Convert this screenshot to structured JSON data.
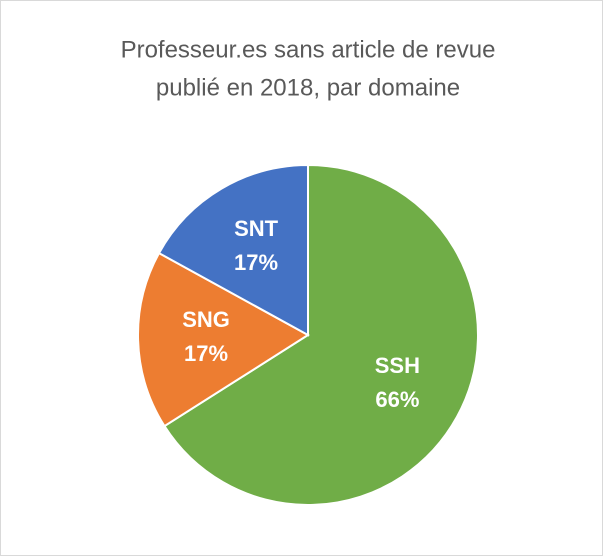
{
  "chart_data": {
    "type": "pie",
    "title": [
      "Professeur.es sans article de revue",
      "publié en 2018, par domaine"
    ],
    "categories": [
      "SSH",
      "SNG",
      "SNT"
    ],
    "values": [
      66,
      17,
      17
    ],
    "value_labels": [
      "66%",
      "17%",
      "17%"
    ],
    "colors": [
      "#70ad47",
      "#ed7d31",
      "#4472c4"
    ]
  }
}
